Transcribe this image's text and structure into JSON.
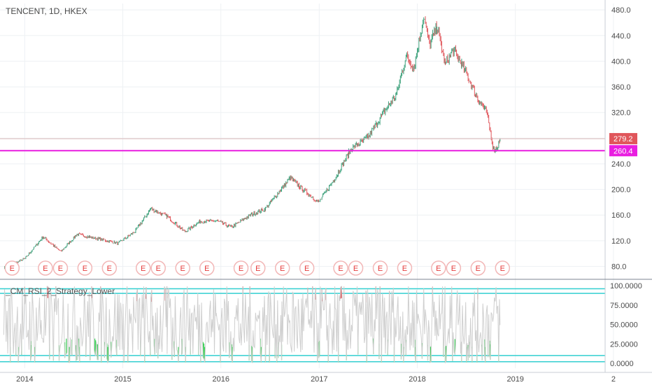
{
  "header": {
    "title": "TENCENT, 1D, HKEX"
  },
  "indicator": {
    "name": "_CM_RSI_2_Strategy_Lower"
  },
  "colors": {
    "up": "#3ba07a",
    "down": "#e0565b",
    "support": "#e91ee0",
    "price_tag": "#e0565b",
    "rsi": "#cfcfcf",
    "rsi_low": "#3fd15a",
    "rsi_high": "#e0565b",
    "bands": "#33cfd0",
    "grid": "#eef1f4",
    "earnings": "#e53b3b"
  },
  "price_axis": {
    "ticks": [
      "480.0",
      "440.0",
      "400.0",
      "360.0",
      "320.0",
      "280.0",
      "240.0",
      "200.0",
      "160.0",
      "120.0",
      "80.0"
    ]
  },
  "rsi_axis": {
    "ticks": [
      "100.0000",
      "75.0000",
      "50.0000",
      "25.0000",
      "0.0000"
    ]
  },
  "time_axis": {
    "ticks": [
      "2014",
      "2015",
      "2016",
      "2017",
      "2018",
      "2019",
      "2"
    ]
  },
  "earnings_marker": "E",
  "chart_data": [
    {
      "type": "line",
      "title": "TENCENT, 1D, HKEX",
      "x_unit": "date",
      "ylim": [
        62,
        490
      ],
      "series": [
        {
          "points": [
            [
              "2013-10-15",
              78
            ],
            [
              "2014-01-02",
              92
            ],
            [
              "2014-03-10",
              126
            ],
            [
              "2014-05-15",
              103
            ],
            [
              "2014-07-15",
              130
            ],
            [
              "2014-10-01",
              123
            ],
            [
              "2014-12-15",
              116
            ],
            [
              "2015-02-15",
              134
            ],
            [
              "2015-04-15",
              170
            ],
            [
              "2015-06-15",
              158
            ],
            [
              "2015-08-20",
              134
            ],
            [
              "2015-10-15",
              150
            ],
            [
              "2015-12-15",
              151
            ],
            [
              "2016-02-10",
              141
            ],
            [
              "2016-04-15",
              159
            ],
            [
              "2016-06-15",
              170
            ],
            [
              "2016-08-15",
              202
            ],
            [
              "2016-09-15",
              218
            ],
            [
              "2016-11-01",
              200
            ],
            [
              "2016-12-30",
              180
            ],
            [
              "2017-03-01",
              218
            ],
            [
              "2017-05-01",
              264
            ],
            [
              "2017-07-01",
              281
            ],
            [
              "2017-09-01",
              322
            ],
            [
              "2017-10-15",
              348
            ],
            [
              "2017-11-20",
              408
            ],
            [
              "2017-12-20",
              390
            ],
            [
              "2018-01-25",
              470
            ],
            [
              "2018-02-15",
              425
            ],
            [
              "2018-03-15",
              455
            ],
            [
              "2018-04-15",
              395
            ],
            [
              "2018-05-15",
              418
            ],
            [
              "2018-06-15",
              395
            ],
            [
              "2018-07-15",
              370
            ],
            [
              "2018-08-15",
              340
            ],
            [
              "2018-09-15",
              322
            ],
            [
              "2018-10-12",
              262
            ],
            [
              "2018-10-25",
              265
            ],
            [
              "2018-11-05",
              279.2
            ]
          ]
        }
      ],
      "last_price": "279.2",
      "support_level": "260.4",
      "earnings_dates": [
        "2013-11-15",
        "2014-03-19",
        "2014-05-14",
        "2014-08-13",
        "2014-11-12",
        "2015-03-18",
        "2015-05-13",
        "2015-08-12",
        "2015-11-10",
        "2016-03-16",
        "2016-05-18",
        "2016-08-17",
        "2016-11-16",
        "2017-03-22",
        "2017-05-17",
        "2017-08-16",
        "2017-11-15",
        "2018-03-21",
        "2018-05-16",
        "2018-08-15",
        "2018-11-14"
      ]
    },
    {
      "type": "line",
      "title": "_CM_RSI_2_Strategy_Lower",
      "x_unit": "date",
      "ylim": [
        0,
        100
      ],
      "reference_lines": [
        96,
        90,
        10,
        2
      ]
    }
  ]
}
